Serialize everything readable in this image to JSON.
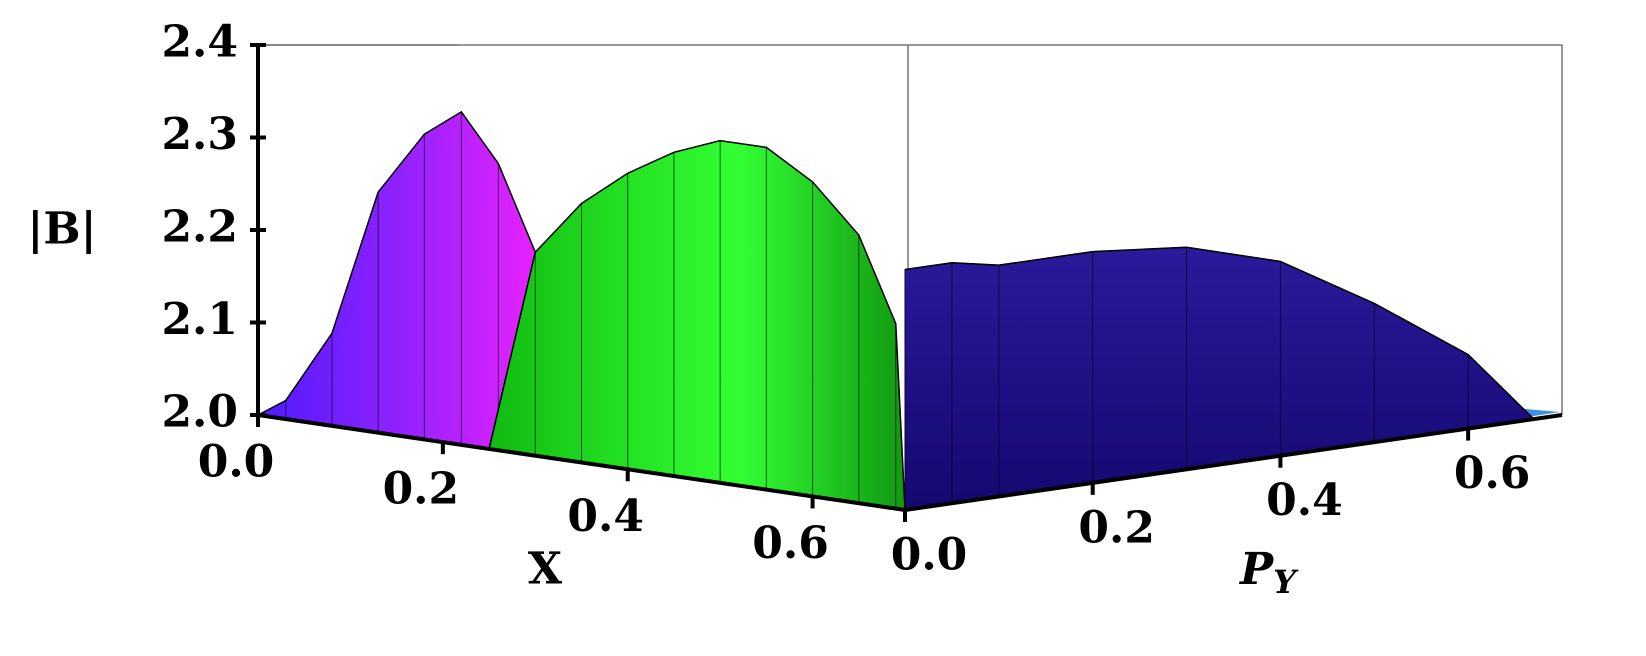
{
  "chart_data": {
    "type": "surface3d",
    "xlabel": "X",
    "ylabel": {
      "text": "P",
      "subscript": "Y"
    },
    "zlabel": "|B|",
    "xlim": [
      0,
      0.7
    ],
    "ylim": [
      0,
      0.7
    ],
    "zlim": [
      2.0,
      2.4
    ],
    "xticks": [
      {
        "value": 0,
        "label": "0.0"
      },
      0.2,
      0.4,
      0.6
    ],
    "yticks": [
      {
        "value": 0,
        "label": "0.0"
      },
      0.2,
      0.4,
      0.6
    ],
    "zticks": [
      {
        "value": 2,
        "label": "2.0"
      },
      2.1,
      2.2,
      2.3,
      2.4
    ],
    "surfaces": [
      {
        "color": "#1a0a80",
        "x": [
          0.7,
          0.7,
          0.7,
          0.7,
          0.7,
          0.7,
          0.7,
          0.7,
          0.7
        ],
        "p": [
          0,
          0.05,
          0.1,
          0.2,
          0.3,
          0.4,
          0.5,
          0.6,
          0.67
        ],
        "z": [
          2.26,
          2.26,
          2.25,
          2.25,
          2.24,
          2.21,
          2.15,
          2.08,
          2.0
        ]
      },
      {
        "color": "#ff22ff",
        "x": [
          0,
          0.03,
          0.08,
          0.13,
          0.18,
          0.22,
          0.26,
          0.3,
          0.34
        ],
        "p": [
          0,
          0,
          0,
          0,
          0,
          0,
          0,
          0,
          0
        ],
        "z": [
          2.0,
          2.02,
          2.1,
          2.26,
          2.33,
          2.36,
          2.31,
          2.22,
          2.12
        ]
      },
      {
        "color": "#22ee22",
        "x": [
          0.25,
          0.3,
          0.35,
          0.4,
          0.45,
          0.5,
          0.55,
          0.6,
          0.65,
          0.69,
          0.7
        ],
        "p": [
          0,
          0,
          0,
          0,
          0,
          0,
          0,
          0,
          0,
          0,
          0
        ],
        "z": [
          2.0,
          2.22,
          2.28,
          2.32,
          2.35,
          2.37,
          2.37,
          2.34,
          2.29,
          2.2,
          2.0
        ]
      }
    ]
  }
}
